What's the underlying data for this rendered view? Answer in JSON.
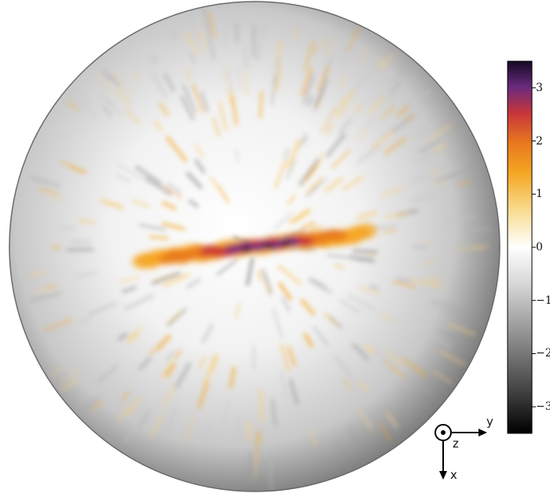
{
  "colorbar": {
    "ticks": [
      {
        "value": 3,
        "label": "3"
      },
      {
        "value": 2,
        "label": "2"
      },
      {
        "value": 1,
        "label": "1"
      },
      {
        "value": 0,
        "label": "0"
      },
      {
        "value": -1,
        "label": "−1"
      },
      {
        "value": -2,
        "label": "−2"
      },
      {
        "value": -3,
        "label": "−3"
      }
    ],
    "range": [
      -3.5,
      3.5
    ],
    "stops": [
      "#000000",
      "#3a3a3a",
      "#8a8a8a",
      "#d6d6d6",
      "#ffffff",
      "#f8dc90",
      "#f5a623",
      "#e8791e",
      "#c8363a",
      "#6b2a7e",
      "#140a24"
    ]
  },
  "axes_indicator": {
    "labels": {
      "y": "y",
      "z": "z",
      "x": "x"
    }
  },
  "sphere": {
    "shading": [
      "#ffffff",
      "#f0f0f0",
      "#bdbdbd",
      "#7a7a7a"
    ],
    "band_colors": [
      "#f5a623",
      "#e8791e",
      "#c8363a",
      "#6b2a7e",
      "#1a0b2e"
    ]
  }
}
